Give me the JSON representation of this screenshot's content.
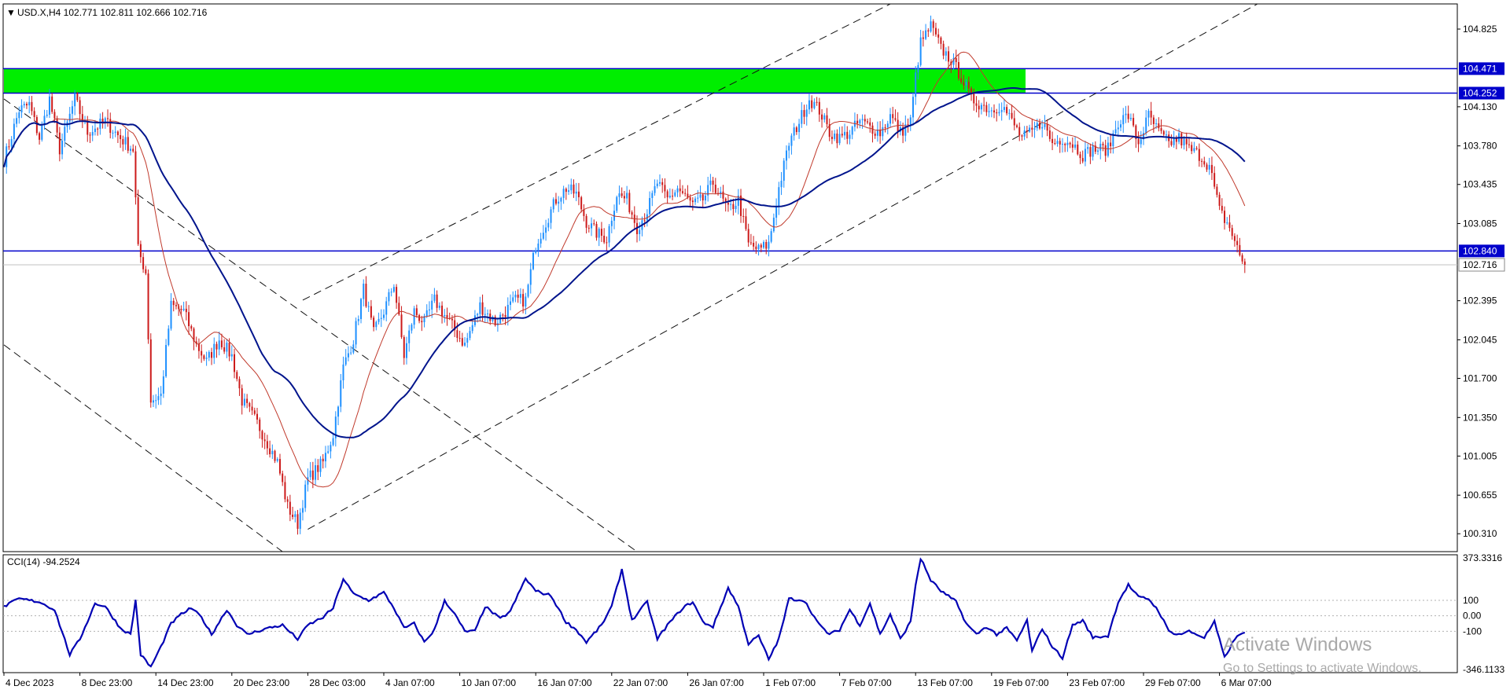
{
  "window": {
    "symbol_header": "USD.X,H4  102.771 102.811 102.666 102.716",
    "watermark_title": "Activate Windows",
    "watermark_sub": "Go to Settings to activate Windows."
  },
  "colors": {
    "bull": "#1e90ff",
    "bear": "#cc1a1a",
    "ma_fast": "#c0392b",
    "ma_slow": "#00148c",
    "hline": "#0000cc",
    "zone": "#00ee00",
    "cci": "#0000b4",
    "channel": "#111111",
    "axis_text": "#000000"
  },
  "chart_data": [
    {
      "type": "candlestick",
      "title": "USD.X,H4  102.771 102.811 102.666 102.716",
      "symbol": "USD.X",
      "timeframe": "H4",
      "ohlc_current": {
        "open": 102.771,
        "high": 102.811,
        "low": 102.666,
        "close": 102.716
      },
      "ylim": [
        100.15,
        105.05
      ],
      "y_ticks": [
        104.825,
        104.13,
        103.78,
        103.435,
        103.085,
        102.395,
        102.045,
        101.7,
        101.35,
        101.005,
        100.655,
        100.31
      ],
      "price_labels": [
        {
          "value": "104.471",
          "style": "line"
        },
        {
          "value": "104.252",
          "style": "line"
        },
        {
          "value": "102.840",
          "style": "line"
        },
        {
          "value": "102.716",
          "style": "current"
        }
      ],
      "x_ticks": [
        "4 Dec 2023",
        "8 Dec 23:00",
        "14 Dec 23:00",
        "20 Dec 23:00",
        "28 Dec 03:00",
        "4 Jan 07:00",
        "10 Jan 07:00",
        "16 Jan 07:00",
        "22 Jan 07:00",
        "26 Jan 07:00",
        "1 Feb 07:00",
        "7 Feb 07:00",
        "13 Feb 07:00",
        "19 Feb 07:00",
        "23 Feb 07:00",
        "29 Feb 07:00",
        "6 Mar 07:00"
      ],
      "x_tick_bars": [
        0,
        30,
        60,
        90,
        120,
        150,
        180,
        210,
        240,
        270,
        300,
        330,
        360,
        390,
        420,
        450,
        480
      ],
      "bar_count": 490,
      "price_path": [
        [
          0,
          103.65
        ],
        [
          6,
          104.1
        ],
        [
          10,
          104.15
        ],
        [
          14,
          103.85
        ],
        [
          18,
          104.2
        ],
        [
          22,
          103.75
        ],
        [
          28,
          104.2
        ],
        [
          33,
          103.9
        ],
        [
          40,
          104.0
        ],
        [
          46,
          103.85
        ],
        [
          51,
          103.75
        ],
        [
          53,
          102.85
        ],
        [
          56,
          102.65
        ],
        [
          58,
          101.5
        ],
        [
          62,
          101.55
        ],
        [
          66,
          102.35
        ],
        [
          71,
          102.3
        ],
        [
          76,
          102.0
        ],
        [
          80,
          101.85
        ],
        [
          85,
          102.05
        ],
        [
          90,
          101.9
        ],
        [
          94,
          101.5
        ],
        [
          100,
          101.3
        ],
        [
          108,
          100.95
        ],
        [
          112,
          100.55
        ],
        [
          116,
          100.4
        ],
        [
          120,
          100.8
        ],
        [
          126,
          100.95
        ],
        [
          130,
          101.2
        ],
        [
          134,
          101.8
        ],
        [
          138,
          102.05
        ],
        [
          142,
          102.5
        ],
        [
          146,
          102.1
        ],
        [
          150,
          102.3
        ],
        [
          154,
          102.55
        ],
        [
          158,
          101.9
        ],
        [
          162,
          102.3
        ],
        [
          166,
          102.2
        ],
        [
          170,
          102.4
        ],
        [
          176,
          102.2
        ],
        [
          182,
          102.0
        ],
        [
          188,
          102.35
        ],
        [
          194,
          102.2
        ],
        [
          198,
          102.3
        ],
        [
          202,
          102.4
        ],
        [
          206,
          102.4
        ],
        [
          210,
          102.9
        ],
        [
          214,
          103.1
        ],
        [
          218,
          103.3
        ],
        [
          222,
          103.4
        ],
        [
          226,
          103.35
        ],
        [
          230,
          103.1
        ],
        [
          234,
          103.0
        ],
        [
          238,
          102.95
        ],
        [
          242,
          103.35
        ],
        [
          246,
          103.3
        ],
        [
          250,
          103.05
        ],
        [
          254,
          103.2
        ],
        [
          258,
          103.45
        ],
        [
          262,
          103.3
        ],
        [
          266,
          103.4
        ],
        [
          272,
          103.25
        ],
        [
          276,
          103.3
        ],
        [
          280,
          103.45
        ],
        [
          286,
          103.2
        ],
        [
          290,
          103.3
        ],
        [
          294,
          102.9
        ],
        [
          298,
          102.85
        ],
        [
          302,
          102.9
        ],
        [
          306,
          103.4
        ],
        [
          310,
          103.8
        ],
        [
          314,
          104.0
        ],
        [
          318,
          104.2
        ],
        [
          322,
          104.1
        ],
        [
          326,
          103.9
        ],
        [
          330,
          103.85
        ],
        [
          334,
          103.9
        ],
        [
          338,
          104.0
        ],
        [
          342,
          103.95
        ],
        [
          346,
          103.9
        ],
        [
          350,
          104.05
        ],
        [
          354,
          103.9
        ],
        [
          358,
          104.0
        ],
        [
          360,
          104.4
        ],
        [
          362,
          104.7
        ],
        [
          366,
          104.85
        ],
        [
          370,
          104.65
        ],
        [
          374,
          104.55
        ],
        [
          378,
          104.4
        ],
        [
          382,
          104.2
        ],
        [
          386,
          104.15
        ],
        [
          390,
          104.1
        ],
        [
          394,
          104.15
        ],
        [
          398,
          104.0
        ],
        [
          402,
          103.85
        ],
        [
          406,
          103.9
        ],
        [
          410,
          104.0
        ],
        [
          414,
          103.8
        ],
        [
          418,
          103.85
        ],
        [
          422,
          103.8
        ],
        [
          426,
          103.7
        ],
        [
          430,
          103.75
        ],
        [
          436,
          103.75
        ],
        [
          440,
          104.0
        ],
        [
          444,
          104.05
        ],
        [
          448,
          103.8
        ],
        [
          452,
          104.05
        ],
        [
          456,
          103.9
        ],
        [
          460,
          103.8
        ],
        [
          464,
          103.85
        ],
        [
          468,
          103.75
        ],
        [
          472,
          103.7
        ],
        [
          476,
          103.6
        ],
        [
          480,
          103.2
        ],
        [
          484,
          103.05
        ],
        [
          488,
          102.8
        ],
        [
          490,
          102.72
        ]
      ],
      "ma_fast_label": "",
      "ma_slow_label": "",
      "zone": {
        "from": 104.252,
        "to": 104.471
      },
      "horizontal_lines": [
        104.471,
        104.252,
        102.84
      ],
      "trend_lines": [
        {
          "from": [
            0,
            104.2
          ],
          "to": [
            250,
            100.15
          ]
        },
        {
          "from": [
            0,
            102.0
          ],
          "to": [
            110,
            100.15
          ]
        },
        {
          "from": [
            118,
            102.4
          ],
          "to": [
            350,
            105.05
          ]
        },
        {
          "from": [
            120,
            100.35
          ],
          "to": [
            495,
            105.05
          ]
        }
      ]
    },
    {
      "type": "line",
      "title": "CCI(14) -94.2524",
      "indicator": "CCI(14)",
      "last_value": -94.2524,
      "ylim": [
        -346.1133,
        373.3316
      ],
      "y_ticks": [
        "373.3316",
        "100",
        "0.00",
        "-100",
        "-346.1133"
      ],
      "cci_path": [
        [
          0,
          60
        ],
        [
          6,
          110
        ],
        [
          14,
          90
        ],
        [
          20,
          40
        ],
        [
          26,
          -250
        ],
        [
          30,
          -150
        ],
        [
          36,
          80
        ],
        [
          40,
          60
        ],
        [
          46,
          -80
        ],
        [
          50,
          -120
        ],
        [
          52,
          100
        ],
        [
          54,
          -250
        ],
        [
          58,
          -330
        ],
        [
          62,
          -200
        ],
        [
          66,
          -50
        ],
        [
          70,
          10
        ],
        [
          74,
          50
        ],
        [
          78,
          -10
        ],
        [
          82,
          -120
        ],
        [
          88,
          40
        ],
        [
          92,
          -60
        ],
        [
          96,
          -120
        ],
        [
          104,
          -80
        ],
        [
          110,
          -60
        ],
        [
          116,
          -150
        ],
        [
          120,
          -60
        ],
        [
          126,
          -10
        ],
        [
          130,
          50
        ],
        [
          134,
          240
        ],
        [
          138,
          140
        ],
        [
          144,
          100
        ],
        [
          150,
          150
        ],
        [
          154,
          50
        ],
        [
          158,
          -80
        ],
        [
          162,
          -50
        ],
        [
          166,
          -170
        ],
        [
          170,
          -90
        ],
        [
          174,
          100
        ],
        [
          178,
          10
        ],
        [
          182,
          -100
        ],
        [
          186,
          -100
        ],
        [
          190,
          60
        ],
        [
          196,
          -20
        ],
        [
          200,
          30
        ],
        [
          206,
          240
        ],
        [
          210,
          160
        ],
        [
          216,
          130
        ],
        [
          222,
          -40
        ],
        [
          226,
          -90
        ],
        [
          230,
          -170
        ],
        [
          236,
          -60
        ],
        [
          240,
          60
        ],
        [
          244,
          300
        ],
        [
          248,
          -30
        ],
        [
          254,
          90
        ],
        [
          258,
          -150
        ],
        [
          262,
          -60
        ],
        [
          268,
          50
        ],
        [
          272,
          90
        ],
        [
          276,
          -40
        ],
        [
          280,
          -70
        ],
        [
          286,
          180
        ],
        [
          290,
          60
        ],
        [
          294,
          -180
        ],
        [
          298,
          -130
        ],
        [
          302,
          -280
        ],
        [
          306,
          -150
        ],
        [
          310,
          110
        ],
        [
          316,
          100
        ],
        [
          322,
          -60
        ],
        [
          326,
          -120
        ],
        [
          330,
          -90
        ],
        [
          334,
          40
        ],
        [
          338,
          -60
        ],
        [
          342,
          80
        ],
        [
          346,
          -120
        ],
        [
          350,
          10
        ],
        [
          354,
          -150
        ],
        [
          358,
          -40
        ],
        [
          360,
          200
        ],
        [
          362,
          370
        ],
        [
          366,
          230
        ],
        [
          370,
          160
        ],
        [
          376,
          90
        ],
        [
          380,
          -50
        ],
        [
          384,
          -120
        ],
        [
          388,
          -70
        ],
        [
          392,
          -120
        ],
        [
          396,
          -80
        ],
        [
          400,
          -160
        ],
        [
          404,
          -30
        ],
        [
          406,
          -230
        ],
        [
          410,
          -80
        ],
        [
          414,
          -200
        ],
        [
          418,
          -270
        ],
        [
          422,
          -60
        ],
        [
          426,
          -30
        ],
        [
          430,
          -140
        ],
        [
          436,
          -130
        ],
        [
          440,
          90
        ],
        [
          444,
          200
        ],
        [
          448,
          120
        ],
        [
          452,
          110
        ],
        [
          456,
          30
        ],
        [
          460,
          -100
        ],
        [
          464,
          -120
        ],
        [
          468,
          -100
        ],
        [
          474,
          -140
        ],
        [
          478,
          -40
        ],
        [
          482,
          -270
        ],
        [
          486,
          -150
        ],
        [
          490,
          -100
        ]
      ]
    }
  ]
}
